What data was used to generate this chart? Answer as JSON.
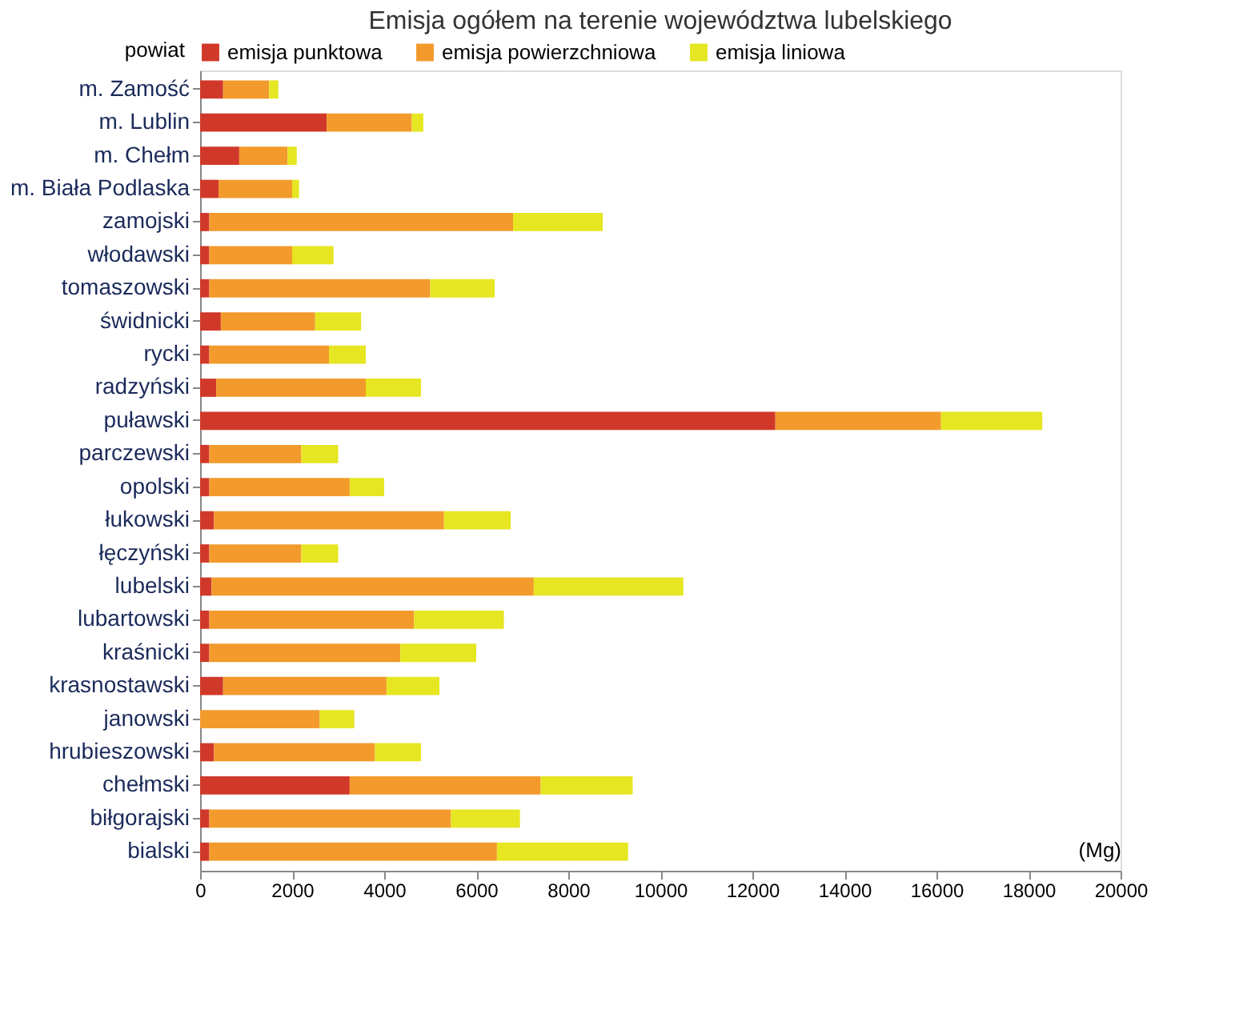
{
  "chart_data": {
    "type": "bar",
    "orientation": "horizontal",
    "stacked": true,
    "title": "Emisja ogółem na terenie województwa lubelskiego",
    "ylabel": "powiat",
    "xlabel": "(Mg)",
    "categories": [
      "m. Zamość",
      "m. Lublin",
      "m. Chełm",
      "m. Biała Podlaska",
      "zamojski",
      "włodawski",
      "tomaszowski",
      "świdnicki",
      "rycki",
      "radzyński",
      "puławski",
      "parczewski",
      "opolski",
      "łukowski",
      "łęczyński",
      "lubelski",
      "lubartowski",
      "kraśnicki",
      "krasnostawski",
      "janowski",
      "hrubieszowski",
      "chełmski",
      "biłgorajski",
      "bialski"
    ],
    "series": [
      {
        "name": "emisja punktowa",
        "color": "#d0392a",
        "values": [
          500,
          2750,
          850,
          400,
          200,
          200,
          200,
          450,
          200,
          350,
          12500,
          200,
          200,
          300,
          200,
          250,
          200,
          200,
          500,
          0,
          300,
          3250,
          200,
          200
        ]
      },
      {
        "name": "emisja powierzchniowa",
        "color": "#f39a2c",
        "values": [
          1000,
          1850,
          1050,
          1600,
          6600,
          1800,
          4800,
          2050,
          2600,
          3250,
          3600,
          2000,
          3050,
          5000,
          2000,
          7000,
          4450,
          4150,
          3550,
          2600,
          3500,
          4150,
          5250,
          6250
        ]
      },
      {
        "name": "emisja liniowa",
        "color": "#e6e622",
        "values": [
          200,
          250,
          200,
          150,
          1950,
          900,
          1400,
          1000,
          800,
          1200,
          2200,
          800,
          750,
          1450,
          800,
          3250,
          1950,
          1650,
          1150,
          750,
          1000,
          2000,
          1500,
          2850
        ]
      }
    ],
    "xlim": [
      0,
      20000
    ],
    "xticks": [
      0,
      2000,
      4000,
      6000,
      8000,
      10000,
      12000,
      14000,
      16000,
      18000,
      20000
    ],
    "grid": false,
    "legend": "top"
  }
}
